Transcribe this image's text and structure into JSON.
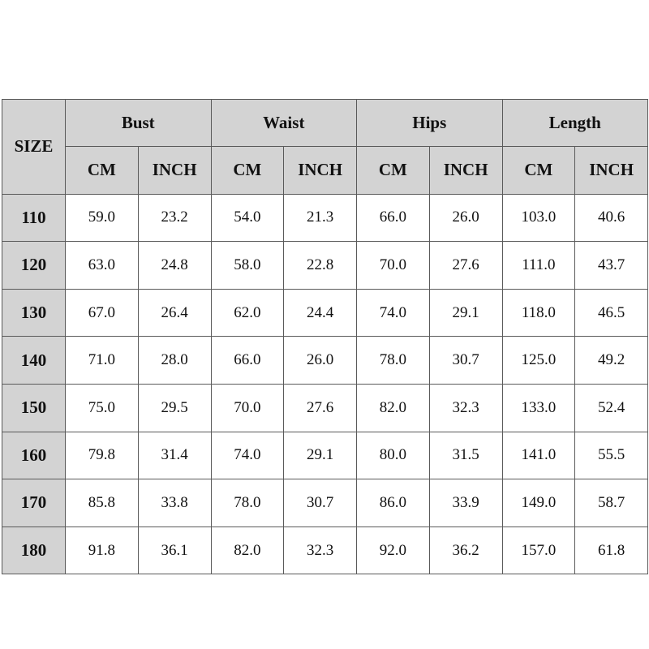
{
  "table": {
    "corner": "SIZE",
    "groups": [
      "Bust",
      "Waist",
      "Hips",
      "Length"
    ],
    "units": [
      "CM",
      "INCH",
      "CM",
      "INCH",
      "CM",
      "INCH",
      "CM",
      "INCH"
    ],
    "rows": [
      [
        "110",
        "59.0",
        "23.2",
        "54.0",
        "21.3",
        "66.0",
        "26.0",
        "103.0",
        "40.6"
      ],
      [
        "120",
        "63.0",
        "24.8",
        "58.0",
        "22.8",
        "70.0",
        "27.6",
        "111.0",
        "43.7"
      ],
      [
        "130",
        "67.0",
        "26.4",
        "62.0",
        "24.4",
        "74.0",
        "29.1",
        "118.0",
        "46.5"
      ],
      [
        "140",
        "71.0",
        "28.0",
        "66.0",
        "26.0",
        "78.0",
        "30.7",
        "125.0",
        "49.2"
      ],
      [
        "150",
        "75.0",
        "29.5",
        "70.0",
        "27.6",
        "82.0",
        "32.3",
        "133.0",
        "52.4"
      ],
      [
        "160",
        "79.8",
        "31.4",
        "74.0",
        "29.1",
        "80.0",
        "31.5",
        "141.0",
        "55.5"
      ],
      [
        "170",
        "85.8",
        "33.8",
        "78.0",
        "30.7",
        "86.0",
        "33.9",
        "149.0",
        "58.7"
      ],
      [
        "180",
        "91.8",
        "36.1",
        "82.0",
        "32.3",
        "92.0",
        "36.2",
        "157.0",
        "61.8"
      ]
    ]
  }
}
